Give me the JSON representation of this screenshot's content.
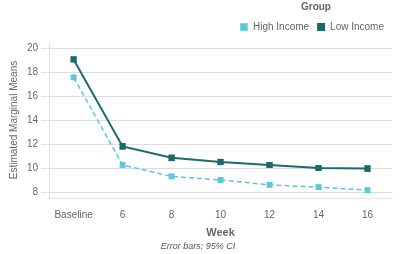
{
  "chart_data": {
    "type": "line",
    "xlabel": "Week",
    "ylabel": "Estimated Marginal Means",
    "categories": [
      "Baseline",
      "6",
      "8",
      "10",
      "12",
      "14",
      "16"
    ],
    "series": [
      {
        "name": "High Income",
        "color": "#5BC8DC",
        "line_style": "dashed",
        "marker": "square",
        "values": [
          17.55,
          10.25,
          9.3,
          9.0,
          8.6,
          8.4,
          8.15
        ],
        "errors": [
          0.18,
          0.18,
          0.18,
          0.18,
          0.18,
          0.18,
          0.18
        ]
      },
      {
        "name": "Low Income",
        "color": "#1A6B6B",
        "line_style": "solid",
        "marker": "square",
        "values": [
          19.05,
          11.8,
          10.85,
          10.5,
          10.25,
          10.0,
          9.95
        ],
        "errors": [
          0.18,
          0.22,
          0.22,
          0.22,
          0.18,
          0.18,
          0.22
        ]
      }
    ],
    "ylim": [
      7.5,
      20.5
    ],
    "yticks": [
      8,
      10,
      12,
      14,
      16,
      18,
      20
    ],
    "grid": "y",
    "legend": "upper right",
    "legend_title": "Group",
    "annotation": "Error bars: 95% CI"
  }
}
